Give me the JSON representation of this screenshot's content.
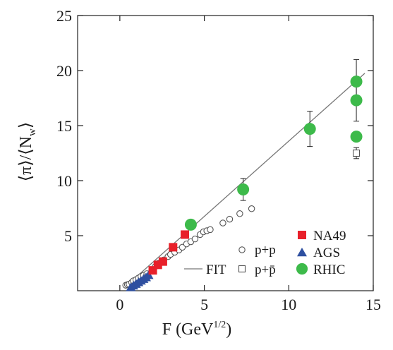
{
  "chart_data": {
    "type": "scatter",
    "xlabel": "F (GeV",
    "xlabel_sup": "1/2",
    "xlabel_close": ")",
    "ylabel_pi": "⟨π⟩",
    "ylabel_slash": "/",
    "ylabel_nw": "⟨N",
    "ylabel_sub": "w",
    "ylabel_close": "⟩",
    "xlim": [
      -2.5,
      15
    ],
    "ylim": [
      0,
      25
    ],
    "x_ticks": [
      0,
      5,
      10,
      15
    ],
    "y_ticks": [
      5,
      10,
      15,
      20,
      25
    ],
    "x_tick_labels": [
      "0",
      "5",
      "10",
      "15"
    ],
    "y_tick_labels": [
      "5",
      "10",
      "15",
      "20",
      "25"
    ],
    "grid": false,
    "legend_placement": "bottom-right",
    "series": [
      {
        "name": "p+p",
        "marker": "open-circle",
        "color": "#555555",
        "points": [
          [
            0.35,
            0.5
          ],
          [
            0.45,
            0.55
          ],
          [
            0.55,
            0.6
          ],
          [
            0.7,
            0.75
          ],
          [
            0.8,
            0.9
          ],
          [
            0.95,
            1.0
          ],
          [
            1.1,
            1.15
          ],
          [
            1.25,
            1.3
          ],
          [
            1.4,
            1.4
          ],
          [
            1.6,
            1.55
          ],
          [
            1.9,
            1.9
          ],
          [
            2.1,
            2.2
          ],
          [
            2.3,
            2.5
          ],
          [
            2.6,
            2.8
          ],
          [
            2.85,
            3.1
          ],
          [
            3.0,
            3.3
          ],
          [
            3.25,
            3.5
          ],
          [
            3.5,
            3.7
          ],
          [
            3.7,
            3.95
          ],
          [
            3.95,
            4.25
          ],
          [
            4.2,
            4.45
          ],
          [
            4.45,
            4.7
          ],
          [
            4.75,
            5.1
          ],
          [
            4.95,
            5.35
          ],
          [
            5.15,
            5.45
          ],
          [
            5.35,
            5.55
          ],
          [
            6.1,
            6.15
          ],
          [
            6.5,
            6.5
          ],
          [
            7.1,
            7.0
          ],
          [
            7.8,
            7.45
          ]
        ]
      },
      {
        "name": "p+p̄",
        "marker": "open-square",
        "color": "#555555",
        "points": [
          [
            14.0,
            12.5
          ]
        ],
        "errors": [
          0.5
        ]
      },
      {
        "name": "NA49",
        "marker": "filled-square",
        "color": "#e8202a",
        "points": [
          [
            1.95,
            1.85
          ],
          [
            2.25,
            2.35
          ],
          [
            2.55,
            2.65
          ],
          [
            3.15,
            3.95
          ],
          [
            3.85,
            5.1
          ]
        ]
      },
      {
        "name": "AGS",
        "marker": "filled-triangle",
        "color": "#2e4fa0",
        "points": [
          [
            0.65,
            0.3
          ],
          [
            0.8,
            0.45
          ],
          [
            0.95,
            0.6
          ],
          [
            1.1,
            0.75
          ],
          [
            1.25,
            0.9
          ],
          [
            1.4,
            1.05
          ],
          [
            1.55,
            1.2
          ],
          [
            1.7,
            1.4
          ]
        ]
      },
      {
        "name": "RHIC",
        "marker": "filled-circle",
        "color": "#3dba4a",
        "points": [
          [
            4.2,
            6.0
          ],
          [
            7.3,
            9.2
          ],
          [
            11.25,
            14.7
          ],
          [
            14.0,
            19.0
          ],
          [
            14.0,
            17.3
          ],
          [
            14.0,
            14.0
          ]
        ],
        "errors": [
          0,
          1.0,
          1.6,
          2.0,
          1.9,
          0
        ]
      },
      {
        "name": "FIT",
        "type": "line",
        "color": "#777777",
        "points": [
          [
            0.5,
            0.6
          ],
          [
            14.5,
            19.75
          ]
        ]
      }
    ]
  }
}
